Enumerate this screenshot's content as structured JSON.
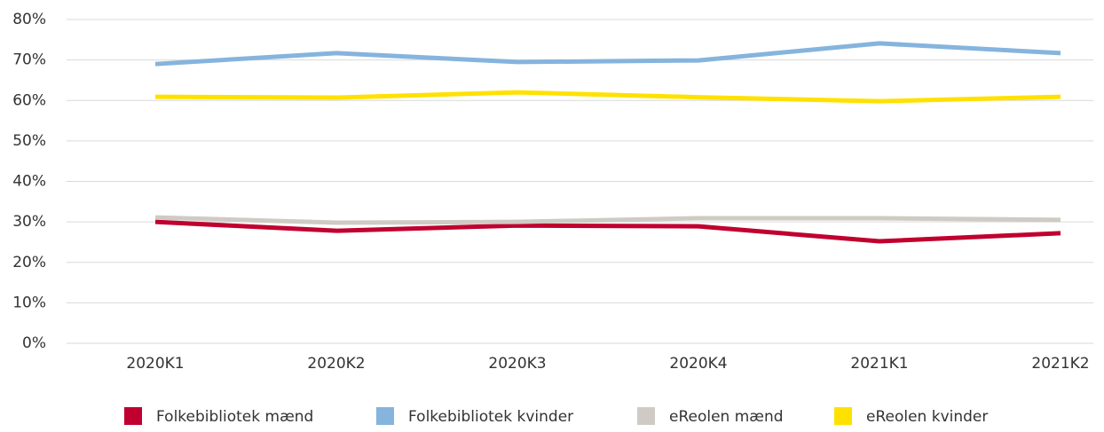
{
  "chart_data": {
    "type": "line",
    "categories": [
      "2020K1",
      "2020K2",
      "2020K3",
      "2020K4",
      "2021K1",
      "2021K2"
    ],
    "series": [
      {
        "name": "Folkebibliotek mænd",
        "color": "#c0002f",
        "values": [
          30.0,
          27.8,
          29.1,
          28.9,
          25.2,
          27.2
        ]
      },
      {
        "name": "Folkebibliotek kvinder",
        "color": "#85b4dd",
        "values": [
          69.0,
          71.7,
          69.5,
          69.9,
          74.1,
          71.7
        ]
      },
      {
        "name": "eReolen mænd",
        "color": "#cfcbc4",
        "values": [
          31.1,
          29.8,
          30.0,
          30.9,
          30.9,
          30.5
        ]
      },
      {
        "name": "eReolen kvinder",
        "color": "#ffe100",
        "values": [
          60.9,
          60.7,
          62.0,
          60.8,
          59.8,
          60.9
        ]
      }
    ],
    "ylim": [
      0,
      80
    ],
    "yticks": [
      {
        "value": 0,
        "label": "0%"
      },
      {
        "value": 10,
        "label": "10%"
      },
      {
        "value": 20,
        "label": "20%"
      },
      {
        "value": 30,
        "label": "30%"
      },
      {
        "value": 40,
        "label": "40%"
      },
      {
        "value": 50,
        "label": "50%"
      },
      {
        "value": 60,
        "label": "60%"
      },
      {
        "value": 70,
        "label": "70%"
      },
      {
        "value": 80,
        "label": "80%"
      }
    ],
    "grid": true,
    "legend": "bottom"
  }
}
